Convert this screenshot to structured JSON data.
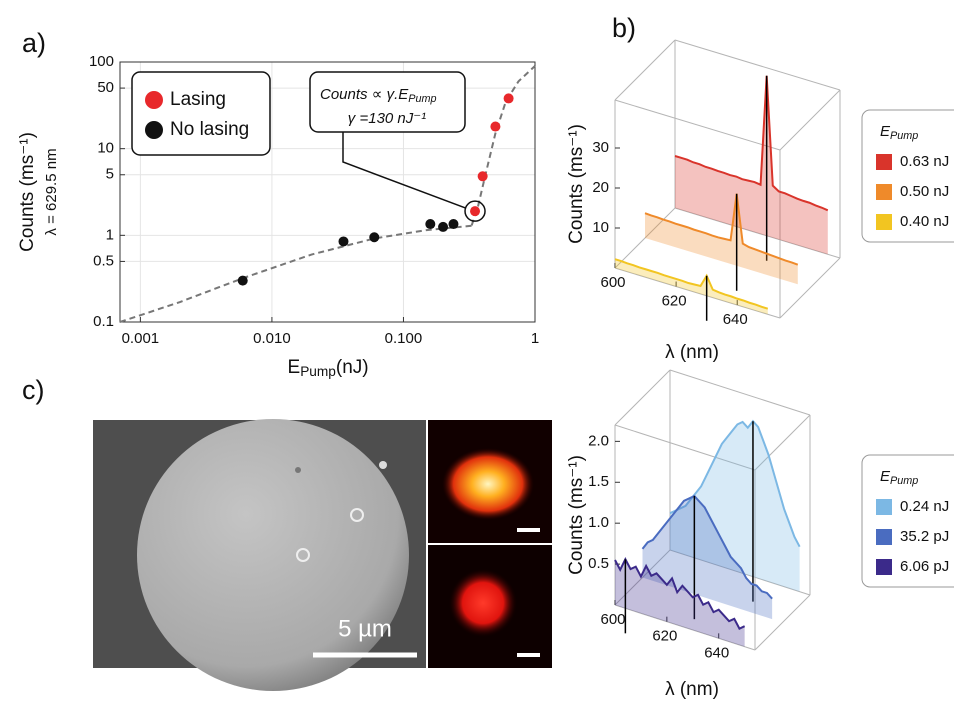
{
  "chart_data": [
    {
      "type": "scatter",
      "panel_label": "a)",
      "log_x": true,
      "log_y": true,
      "grid": true,
      "legend": "top-left",
      "x_label": {
        "symbol": "E",
        "subscript": "Pump",
        "unit": "(nJ)"
      },
      "y_label": "Counts (ms⁻¹)",
      "y_label_2": "λ = 629.5 nm",
      "xlim": [
        0.0007,
        1
      ],
      "xticks": [
        0.001,
        {
          "value": 0.01,
          "label": "0.010"
        },
        {
          "value": 0.1,
          "label": "0.100"
        },
        1
      ],
      "ylim": [
        0.1,
        100
      ],
      "yticks": [
        0.1,
        0.5,
        1,
        5,
        10,
        50,
        100
      ],
      "series": [
        {
          "name": "Lasing",
          "color": "#e8282b",
          "x": [
            0.35,
            0.4,
            0.5,
            0.63
          ],
          "values": [
            1.9,
            4.8,
            18,
            38
          ]
        },
        {
          "name": "No lasing",
          "color": "#111111",
          "x": [
            0.006,
            0.035,
            0.06,
            0.16,
            0.2,
            0.24
          ],
          "values": [
            0.3,
            0.85,
            0.95,
            1.35,
            1.25,
            1.35
          ]
        }
      ],
      "fit_curves": [
        {
          "color": "#777777",
          "x": [
            0.0007,
            0.002,
            0.006,
            0.02,
            0.06,
            0.15,
            0.35
          ],
          "values": [
            0.1,
            0.17,
            0.32,
            0.6,
            0.92,
            1.15,
            1.3
          ]
        },
        {
          "color": "#777777",
          "x": [
            0.33,
            0.37,
            0.42,
            0.5,
            0.6,
            0.75,
            1
          ],
          "values": [
            1.3,
            2.2,
            5,
            15,
            35,
            60,
            90
          ]
        }
      ],
      "annotation": {
        "line1": "Counts ∝ γ.E",
        "line1_subscript": "Pump",
        "line2": "γ =130 nJ⁻¹"
      }
    },
    {
      "type": "waterfall3d",
      "panel_label": "b)",
      "x_label": "λ (nm)",
      "y_label": "Counts (ms⁻¹)",
      "legend_title": {
        "symbol": "E",
        "subscript": "Pump"
      },
      "xlim": [
        600,
        654
      ],
      "xticks": [
        600,
        620,
        640
      ],
      "zlim": [
        0,
        42
      ],
      "zticks": [
        10,
        20,
        30
      ],
      "x": [
        600,
        602,
        604,
        606,
        608,
        610,
        612,
        614,
        616,
        618,
        620,
        622,
        624,
        626,
        628,
        630,
        632,
        634,
        636,
        638,
        640,
        642,
        644,
        646,
        648,
        650
      ],
      "series": [
        {
          "name": "0.63 nJ",
          "color": "#d9342b",
          "values": [
            13,
            13,
            13,
            12.8,
            12.8,
            12.6,
            12.6,
            12.5,
            12.5,
            12.4,
            12.5,
            12.3,
            12.4,
            12.5,
            12.3,
            40,
            13,
            12,
            12,
            11.8,
            11.6,
            11.5,
            11.5,
            11.3,
            11.2,
            11
          ]
        },
        {
          "name": "0.50 nJ",
          "color": "#ef8a2a",
          "values": [
            6.2,
            6.1,
            6.1,
            6,
            6,
            5.9,
            5.9,
            5.9,
            5.8,
            5.8,
            5.8,
            5.7,
            5.7,
            5.8,
            5.9,
            18,
            6,
            5.6,
            5.5,
            5.4,
            5.3,
            5.2,
            5.1,
            5,
            5,
            4.9
          ]
        },
        {
          "name": "0.40 nJ",
          "color": "#f2c521",
          "values": [
            2.2,
            2.2,
            2.1,
            2.1,
            2,
            2,
            2,
            2,
            1.9,
            1.9,
            1.9,
            1.9,
            1.8,
            1.9,
            2,
            5,
            2,
            1.8,
            1.7,
            1.7,
            1.6,
            1.6,
            1.5,
            1.5,
            1.4,
            1.4
          ]
        }
      ]
    },
    {
      "type": "waterfall3d",
      "x_label": "λ (nm)",
      "y_label": "Counts (ms⁻¹)",
      "legend_title": {
        "symbol": "E",
        "subscript": "Pump"
      },
      "xlim": [
        600,
        654
      ],
      "xticks": [
        600,
        620,
        640
      ],
      "zlim": [
        0,
        2.2
      ],
      "zticks": [
        0.5,
        {
          "value": 1,
          "label": "1.0"
        },
        1.5,
        {
          "value": 2,
          "label": "2.0"
        }
      ],
      "x": [
        600,
        602,
        604,
        606,
        608,
        610,
        612,
        614,
        616,
        618,
        620,
        622,
        624,
        626,
        628,
        630,
        632,
        634,
        636,
        638,
        640,
        642,
        644,
        646,
        648,
        650
      ],
      "series": [
        {
          "name": "0.24 nJ",
          "color": "#7cb8e4",
          "values": [
            0.45,
            0.5,
            0.55,
            0.6,
            0.7,
            0.8,
            0.9,
            1.05,
            1.2,
            1.35,
            1.5,
            1.6,
            1.7,
            1.8,
            1.85,
            1.8,
            1.9,
            1.85,
            1.7,
            1.55,
            1.35,
            1.15,
            0.95,
            0.8,
            0.65,
            0.55
          ]
        },
        {
          "name": "35.2 pJ",
          "color": "#4a6cc0",
          "values": [
            0.35,
            0.45,
            0.5,
            0.6,
            0.7,
            0.8,
            0.9,
            1.0,
            1.1,
            1.15,
            1.2,
            1.15,
            1.1,
            1.0,
            0.9,
            0.8,
            0.7,
            0.6,
            0.55,
            0.5,
            0.4,
            0.35,
            0.35,
            0.3,
            0.3,
            0.25
          ]
        },
        {
          "name": "6.06 pJ",
          "color": "#3b2a8a",
          "values": [
            0.55,
            0.45,
            0.6,
            0.5,
            0.55,
            0.45,
            0.6,
            0.5,
            0.55,
            0.5,
            0.45,
            0.55,
            0.4,
            0.5,
            0.45,
            0.4,
            0.45,
            0.35,
            0.4,
            0.3,
            0.35,
            0.3,
            0.25,
            0.3,
            0.2,
            0.25
          ]
        }
      ]
    }
  ],
  "image_panel": {
    "label": "c)",
    "scale_bar": "5 µm"
  }
}
